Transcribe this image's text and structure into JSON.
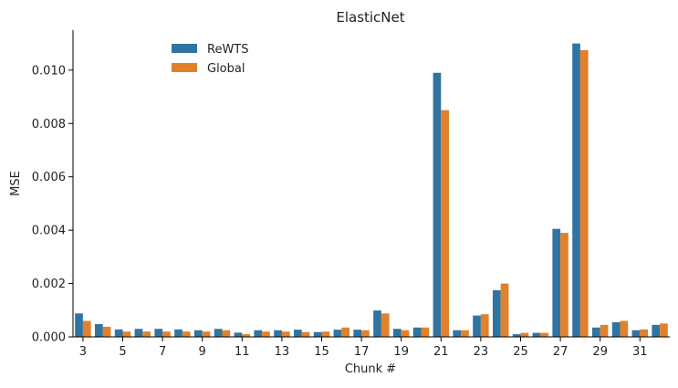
{
  "chart_data": {
    "type": "bar",
    "title": "ElasticNet",
    "xlabel": "Chunk #",
    "ylabel": "MSE",
    "ylim": [
      0,
      0.0115
    ],
    "yticks": [
      "0.000",
      "0.002",
      "0.004",
      "0.006",
      "0.008",
      "0.010"
    ],
    "ytick_values": [
      0,
      0.002,
      0.004,
      0.006,
      0.008,
      0.01
    ],
    "categories": [
      "3",
      "4",
      "5",
      "6",
      "7",
      "8",
      "9",
      "10",
      "11",
      "12",
      "13",
      "14",
      "15",
      "16",
      "17",
      "18",
      "19",
      "20",
      "21",
      "22",
      "23",
      "24",
      "25",
      "26",
      "27",
      "28",
      "29",
      "30",
      "31",
      "32"
    ],
    "xtick_labels": [
      "3",
      "5",
      "7",
      "9",
      "11",
      "13",
      "15",
      "17",
      "19",
      "21",
      "23",
      "25",
      "27",
      "29",
      "31"
    ],
    "legend_position": "upper-left",
    "series": [
      {
        "name": "ReWTS",
        "color": "#3274a1",
        "values": [
          0.00088,
          0.00048,
          0.00028,
          0.0003,
          0.0003,
          0.00028,
          0.00025,
          0.0003,
          0.00016,
          0.00025,
          0.00025,
          0.00027,
          0.00018,
          0.00027,
          0.00027,
          0.00099,
          0.0003,
          0.00035,
          0.0099,
          0.00025,
          0.0008,
          0.00175,
          0.0001,
          0.00015,
          0.00405,
          0.011,
          0.00035,
          0.00055,
          0.00025,
          0.00045
        ]
      },
      {
        "name": "Global",
        "color": "#e1812c",
        "values": [
          0.0006,
          0.00038,
          0.0002,
          0.0002,
          0.0002,
          0.0002,
          0.0002,
          0.00025,
          0.0001,
          0.0002,
          0.0002,
          0.00018,
          0.0002,
          0.00035,
          0.00025,
          0.00088,
          0.00025,
          0.00035,
          0.0085,
          0.00025,
          0.00085,
          0.002,
          0.00015,
          0.00015,
          0.0039,
          0.01075,
          0.00045,
          0.0006,
          0.00028,
          0.0005
        ]
      }
    ]
  }
}
